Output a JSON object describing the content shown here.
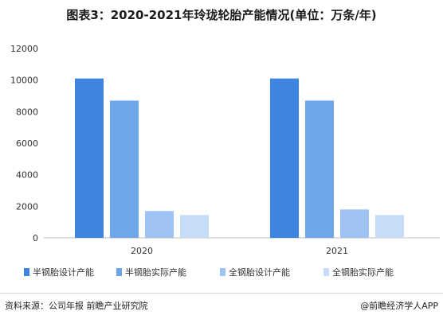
{
  "header": {
    "title": "图表3：2020-2021年玲珑轮胎产能情况(单位：万条/年)"
  },
  "chart_data": {
    "type": "bar",
    "title": "图表3：2020-2021年玲珑轮胎产能情况(单位：万条/年)",
    "categories": [
      "2020",
      "2021"
    ],
    "series": [
      {
        "name": "半钢胎设计产能",
        "values": [
          10100,
          10100
        ],
        "color": "#3d85e0"
      },
      {
        "name": "半钢胎实际产能",
        "values": [
          8700,
          8700
        ],
        "color": "#6fa6ea"
      },
      {
        "name": "全钢胎设计产能",
        "values": [
          1700,
          1800
        ],
        "color": "#9fc4f3"
      },
      {
        "name": "全钢胎实际产能",
        "values": [
          1450,
          1450
        ],
        "color": "#c6dcf8"
      }
    ],
    "yticks": [
      "0",
      "2000",
      "4000",
      "6000",
      "8000",
      "10000",
      "12000"
    ],
    "ylim": [
      0,
      12000
    ],
    "grid": false,
    "legend_position": "bottom"
  },
  "footer": {
    "source": "资料来源：公司年报 前瞻产业研究院",
    "brand": "@前瞻经济学人APP"
  }
}
